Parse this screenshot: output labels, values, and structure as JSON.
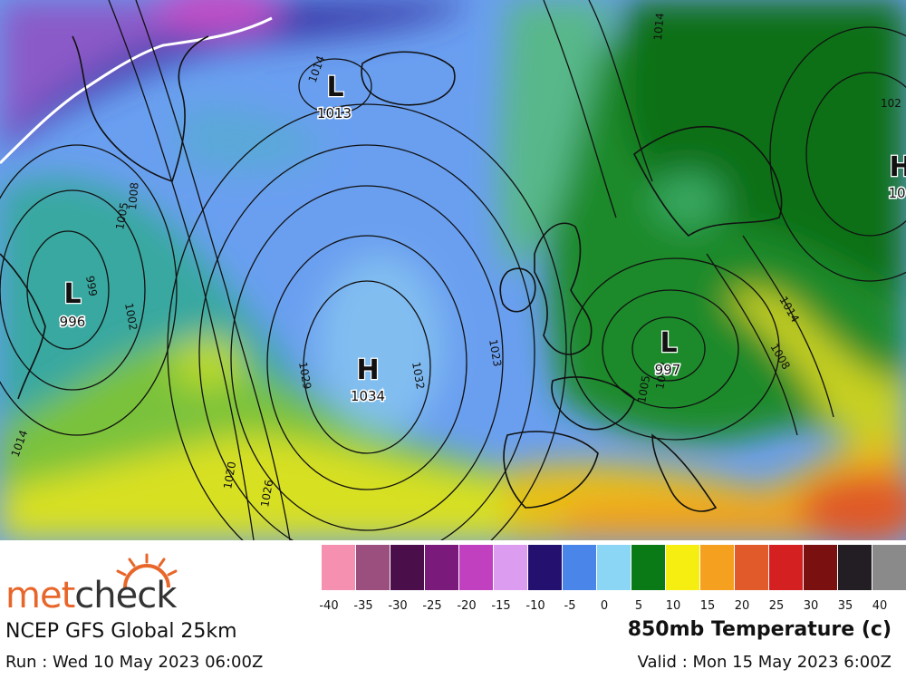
{
  "map": {
    "pressure_systems": [
      {
        "type": "L",
        "value": "1013"
      },
      {
        "type": "L",
        "value": "996"
      },
      {
        "type": "H",
        "value": "1034"
      },
      {
        "type": "L",
        "value": "997"
      },
      {
        "type": "H",
        "value": "10"
      }
    ],
    "isobar_labels": [
      "1014",
      "1008",
      "1005",
      "999",
      "1002",
      "1029",
      "1032",
      "1023",
      "1020",
      "1026",
      "1014",
      "1014",
      "1005",
      "1008",
      "1002",
      "102",
      "1014"
    ]
  },
  "footer": {
    "brand": {
      "met": "met",
      "check": "check"
    },
    "model": "NCEP GFS Global 25km",
    "run": "Run : Wed 10 May 2023 06:00Z",
    "product": "850mb Temperature (c)",
    "valid": "Valid : Mon 15 May 2023 6:00Z"
  },
  "scale": {
    "colors": [
      "#f690b0",
      "#9a4f7e",
      "#4a0f4a",
      "#7a1a7a",
      "#c040c0",
      "#dc9cf0",
      "#24106e",
      "#4a86ea",
      "#8ad6f4",
      "#0a7a16",
      "#f6ee10",
      "#f6a020",
      "#e05a2a",
      "#d42020",
      "#7a1010",
      "#221e24",
      "#8a8a8a",
      "#d8d8d8"
    ],
    "ticks": [
      "-40",
      "-35",
      "-30",
      "-25",
      "-20",
      "-15",
      "-10",
      "-5",
      "0",
      "5",
      "10",
      "15",
      "20",
      "25",
      "30",
      "35",
      "40"
    ]
  }
}
